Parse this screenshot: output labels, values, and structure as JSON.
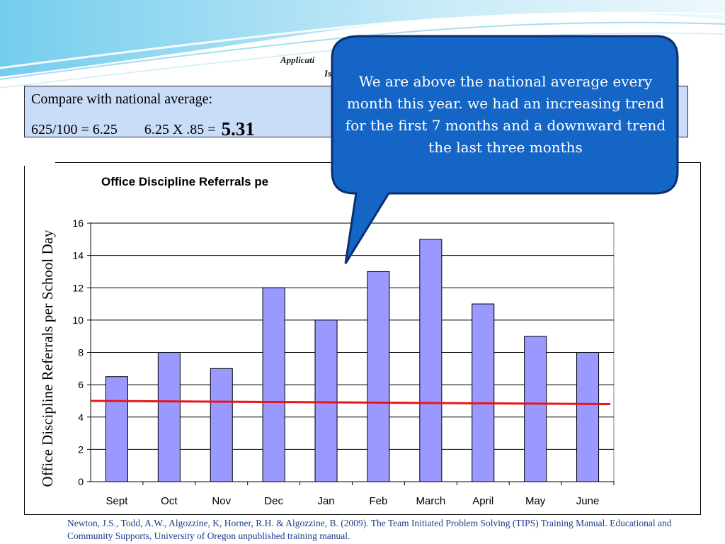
{
  "heading": {
    "line1": "Applicati",
    "line2": "Is"
  },
  "compare": {
    "line1": "Compare with national average:",
    "calc_a": "625/100 = 6.25",
    "calc_b": "6.25 X .85  =",
    "result": "5.31"
  },
  "callout": {
    "text": "We are above the national average every month this year. we had an increasing trend for the first 7 months and a downward trend the last three months"
  },
  "citation": "Newton, J.S., Todd, A.W., Algozzine, K, Horner, R.H. & Algozzine, B. (2009). The Team Initiated Problem Solving (TIPS) Training Manual. Educational and Community Supports, University of Oregon unpublished training manual.",
  "colors": {
    "bar_fill": "#9999ff",
    "trend_line": "#e8151b",
    "callout_fill": "#1565c6",
    "callout_stroke": "#0a2f70",
    "box_fill": "#c9dcf8",
    "wave": "#7fd0ec"
  },
  "chart_data": {
    "type": "bar",
    "title": "Office Discipline Referrals pe",
    "ylabel": "Office Discipline Referrals per School Day",
    "xlabel": "",
    "categories": [
      "Sept",
      "Oct",
      "Nov",
      "Dec",
      "Jan",
      "Feb",
      "March",
      "April",
      "May",
      "June"
    ],
    "values": [
      6.5,
      8,
      7,
      12,
      10,
      13,
      15,
      11,
      9,
      8
    ],
    "ylim": [
      0,
      16
    ],
    "yticks": [
      0,
      2,
      4,
      6,
      8,
      10,
      12,
      14,
      16
    ],
    "grid": true,
    "trend_line": {
      "start": 5.0,
      "end": 4.8
    }
  }
}
